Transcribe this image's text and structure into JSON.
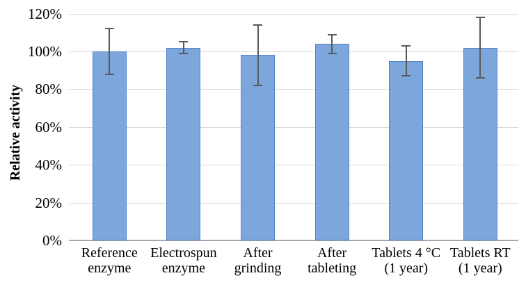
{
  "chart_data": {
    "type": "bar",
    "title": "",
    "xlabel": "",
    "ylabel": "Relative activity",
    "categories": [
      "Reference\nenzyme",
      "Electrospun\nenzyme",
      "After\ngrinding",
      "After\ntableting",
      "Tablets 4 °C\n(1 year)",
      "Tablets RT\n(1 year)"
    ],
    "values": [
      100,
      102,
      98,
      104,
      95,
      102
    ],
    "error_plus": [
      12,
      3,
      16,
      5,
      8,
      16
    ],
    "error_minus": [
      12,
      3,
      16,
      5,
      8,
      16
    ],
    "ylim": [
      0,
      120
    ],
    "yticks": [
      0,
      20,
      40,
      60,
      80,
      100,
      120
    ],
    "ytick_labels": [
      "0%",
      "20%",
      "40%",
      "60%",
      "80%",
      "100%",
      "120%"
    ],
    "grid": true,
    "legend": false,
    "error_bars": true
  },
  "colors": {
    "bar_fill": "#7DA6DC",
    "bar_border": "#5585C7",
    "error_bar": "#595959",
    "gridline": "#D9D9D9",
    "axis_line": "#A6A6A6",
    "text": "#000000",
    "background": "#FFFFFF"
  }
}
